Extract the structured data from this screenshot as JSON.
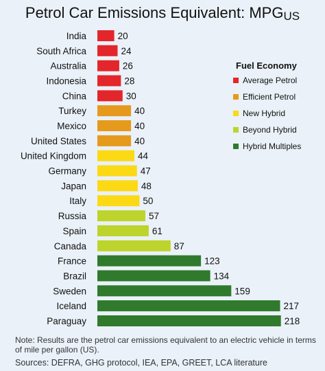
{
  "chart_data": {
    "type": "bar",
    "orientation": "horizontal",
    "title": "Petrol Car Emissions Equivalent: MPG",
    "title_subscript": "US",
    "categories": [
      "India",
      "South Africa",
      "Australia",
      "Indonesia",
      "China",
      "Turkey",
      "Mexico",
      "United States",
      "United Kingdom",
      "Germany",
      "Japan",
      "Italy",
      "Russia",
      "Spain",
      "Canada",
      "France",
      "Brazil",
      "Sweden",
      "Iceland",
      "Paraguay"
    ],
    "values": [
      20,
      24,
      26,
      28,
      30,
      40,
      40,
      40,
      44,
      47,
      48,
      50,
      57,
      61,
      87,
      123,
      134,
      159,
      217,
      218
    ],
    "groups": [
      "Average Petrol",
      "Average Petrol",
      "Average Petrol",
      "Average Petrol",
      "Average Petrol",
      "Efficient Petrol",
      "Efficient Petrol",
      "Efficient Petrol",
      "New Hybrid",
      "New Hybrid",
      "New Hybrid",
      "New Hybrid",
      "Beyond Hybrid",
      "Beyond Hybrid",
      "Beyond Hybrid",
      "Hybrid Multiples",
      "Hybrid Multiples",
      "Hybrid Multiples",
      "Hybrid Multiples",
      "Hybrid Multiples"
    ],
    "xlim": [
      0,
      228
    ],
    "grid": false,
    "legend_title": "Fuel Economy",
    "legend_placement": "right",
    "legend": [
      {
        "name": "Average Petrol",
        "color": "#e3262b"
      },
      {
        "name": "Efficient Petrol",
        "color": "#e59a1d"
      },
      {
        "name": "New Hybrid",
        "color": "#fbd914"
      },
      {
        "name": "Beyond Hybrid",
        "color": "#bcd42b"
      },
      {
        "name": "Hybrid Multiples",
        "color": "#2f7a2c"
      }
    ]
  },
  "note": "Note:  Results are the petrol car emissions equivalent to an electric vehicle in terms of mile per gallon (US).",
  "sources": "Sources: DEFRA, GHG protocol, IEA, EPA, GREET, LCA literature"
}
